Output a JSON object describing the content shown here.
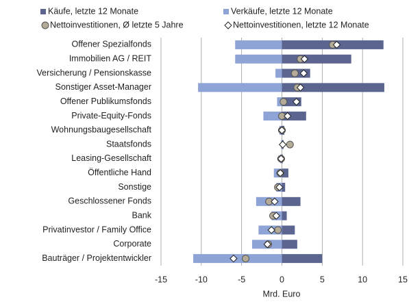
{
  "chart_data": {
    "type": "diverging-bar",
    "categories": [
      "Offener Spezialfonds",
      "Immobilien AG / REIT",
      "Versicherung / Pensionskasse",
      "Sonstiger Asset-Manager",
      "Offener Publikumsfonds",
      "Private-Equity-Fonds",
      "Wohnungsbaugesellschaft",
      "Staatsfonds",
      "Leasing-Gesellschaft",
      "Öffentliche Hand",
      "Sonstige",
      "Geschlossener Fonds",
      "Bank",
      "Privatinvestor / Family Office",
      "Corporate",
      "Bauträger / Projektentwickler"
    ],
    "series": [
      {
        "name": "Käufe, letzte 12 Monate",
        "color": "#5b6590",
        "marker": "bar",
        "values": [
          12.6,
          8.6,
          3.5,
          12.7,
          2.4,
          3.0,
          0.3,
          0.2,
          0.1,
          0.8,
          0.4,
          2.3,
          0.6,
          1.6,
          1.9,
          5.0
        ]
      },
      {
        "name": "Verkäufe, letzte 12 Monate",
        "color": "#8ea3d6",
        "marker": "bar",
        "values": [
          -5.8,
          -5.8,
          -0.8,
          -10.4,
          -0.6,
          -2.3,
          -0.3,
          -0.1,
          -0.2,
          -1.0,
          -0.7,
          -3.2,
          -1.3,
          -2.9,
          -3.7,
          -11.0
        ]
      },
      {
        "name": "Nettoinvestitionen, Ø letzte 5 Jahre",
        "color": "#b3ab98",
        "marker": "circle",
        "values": [
          6.3,
          2.3,
          1.6,
          1.9,
          0.2,
          0.0,
          0.0,
          1.0,
          -0.1,
          -0.2,
          -0.5,
          -1.6,
          -1.1,
          -0.5,
          -1.7,
          -4.5
        ]
      },
      {
        "name": "Nettoinvestitionen, letzte 12 Monate",
        "color": "#ffffff",
        "marker": "diamond",
        "values": [
          6.8,
          2.8,
          2.7,
          2.3,
          1.8,
          0.7,
          0.0,
          0.1,
          -0.1,
          -0.2,
          -0.3,
          -0.9,
          -0.7,
          -1.3,
          -1.8,
          -6.0
        ]
      }
    ],
    "xlabel": "Mrd. Euro",
    "xlim": [
      -15,
      15
    ],
    "xticks": [
      -15,
      -10,
      -5,
      0,
      5,
      10,
      15
    ],
    "grid": true
  }
}
